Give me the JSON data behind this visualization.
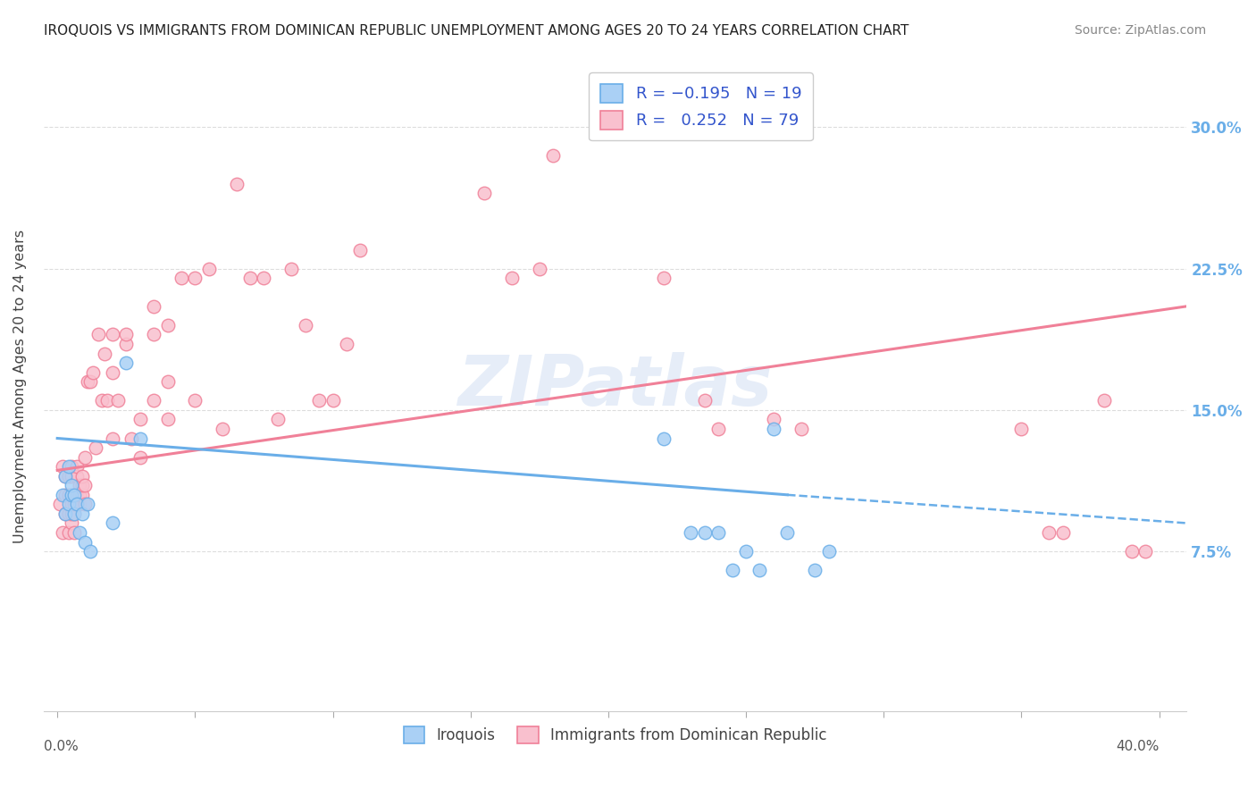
{
  "title": "IROQUOIS VS IMMIGRANTS FROM DOMINICAN REPUBLIC UNEMPLOYMENT AMONG AGES 20 TO 24 YEARS CORRELATION CHART",
  "source": "Source: ZipAtlas.com",
  "ylabel": "Unemployment Among Ages 20 to 24 years",
  "y_ticks": [
    "7.5%",
    "15.0%",
    "22.5%",
    "30.0%"
  ],
  "y_tick_vals": [
    0.075,
    0.15,
    0.225,
    0.3
  ],
  "x_lim": [
    -0.005,
    0.41
  ],
  "y_lim": [
    -0.01,
    0.335
  ],
  "watermark": "ZIPatlas",
  "blue_color": "#6aaee8",
  "pink_color": "#f08098",
  "blue_fill": "#aad0f5",
  "pink_fill": "#f9c0ce",
  "iroquois_x": [
    0.002,
    0.003,
    0.003,
    0.004,
    0.004,
    0.005,
    0.005,
    0.006,
    0.006,
    0.007,
    0.008,
    0.009,
    0.01,
    0.011,
    0.012,
    0.02,
    0.025,
    0.03,
    0.22,
    0.23,
    0.235,
    0.24,
    0.245,
    0.25,
    0.255,
    0.26,
    0.265,
    0.275,
    0.28
  ],
  "iroquois_y": [
    0.105,
    0.095,
    0.115,
    0.1,
    0.12,
    0.105,
    0.11,
    0.105,
    0.095,
    0.1,
    0.085,
    0.095,
    0.08,
    0.1,
    0.075,
    0.09,
    0.175,
    0.135,
    0.135,
    0.085,
    0.085,
    0.085,
    0.065,
    0.075,
    0.065,
    0.14,
    0.085,
    0.065,
    0.075
  ],
  "immigrants_x": [
    0.001,
    0.002,
    0.002,
    0.003,
    0.003,
    0.003,
    0.004,
    0.004,
    0.004,
    0.004,
    0.005,
    0.005,
    0.005,
    0.005,
    0.005,
    0.005,
    0.006,
    0.006,
    0.006,
    0.007,
    0.007,
    0.007,
    0.008,
    0.008,
    0.008,
    0.009,
    0.009,
    0.009,
    0.01,
    0.01,
    0.01,
    0.011,
    0.012,
    0.013,
    0.014,
    0.015,
    0.016,
    0.017,
    0.018,
    0.02,
    0.02,
    0.02,
    0.022,
    0.025,
    0.025,
    0.027,
    0.03,
    0.03,
    0.035,
    0.035,
    0.035,
    0.04,
    0.04,
    0.04,
    0.045,
    0.05,
    0.05,
    0.055,
    0.06,
    0.065,
    0.07,
    0.075,
    0.08,
    0.085,
    0.09,
    0.095,
    0.1,
    0.105,
    0.11,
    0.155,
    0.165,
    0.175,
    0.18,
    0.22,
    0.235,
    0.24,
    0.26,
    0.27,
    0.35,
    0.36,
    0.365,
    0.38,
    0.39,
    0.395
  ],
  "immigrants_y": [
    0.1,
    0.085,
    0.12,
    0.095,
    0.105,
    0.115,
    0.085,
    0.095,
    0.105,
    0.115,
    0.09,
    0.095,
    0.1,
    0.105,
    0.115,
    0.12,
    0.085,
    0.095,
    0.1,
    0.105,
    0.115,
    0.12,
    0.1,
    0.105,
    0.11,
    0.105,
    0.11,
    0.115,
    0.1,
    0.11,
    0.125,
    0.165,
    0.165,
    0.17,
    0.13,
    0.19,
    0.155,
    0.18,
    0.155,
    0.135,
    0.17,
    0.19,
    0.155,
    0.185,
    0.19,
    0.135,
    0.125,
    0.145,
    0.155,
    0.19,
    0.205,
    0.145,
    0.165,
    0.195,
    0.22,
    0.155,
    0.22,
    0.225,
    0.14,
    0.27,
    0.22,
    0.22,
    0.145,
    0.225,
    0.195,
    0.155,
    0.155,
    0.185,
    0.235,
    0.265,
    0.22,
    0.225,
    0.285,
    0.22,
    0.155,
    0.14,
    0.145,
    0.14,
    0.14,
    0.085,
    0.085,
    0.155,
    0.075,
    0.075
  ]
}
